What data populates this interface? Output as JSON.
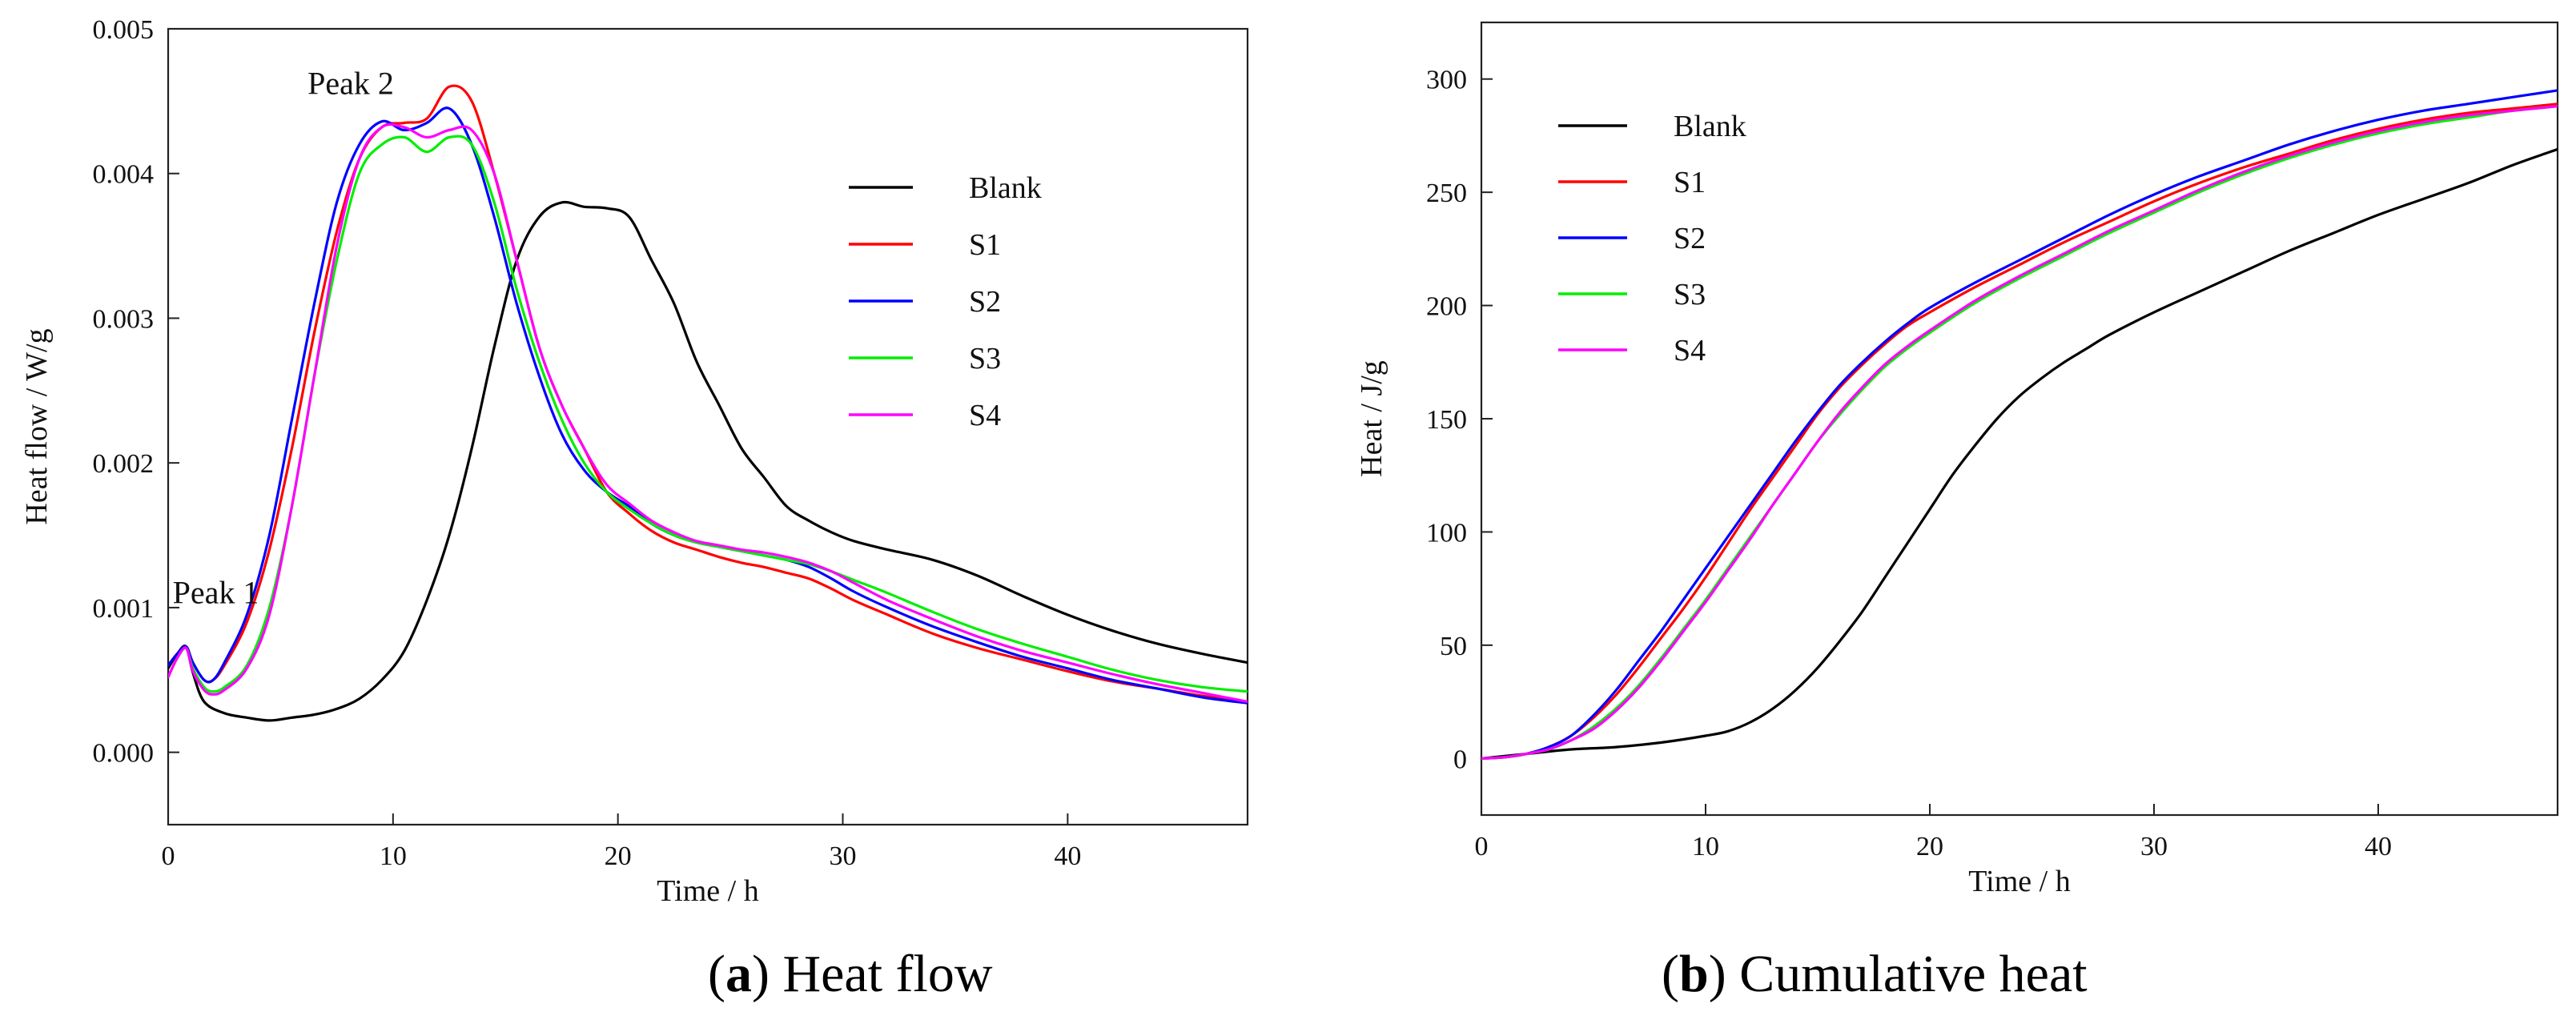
{
  "chart_data": [
    {
      "id": "a",
      "type": "line",
      "caption_letter": "a",
      "caption_text": " Heat flow",
      "title": "",
      "xlabel": "Time / h",
      "ylabel": "Heat flow / W/g",
      "xlim": [
        0,
        48
      ],
      "ylim": [
        -0.0005,
        0.005
      ],
      "xticks": [
        0,
        10,
        20,
        30,
        40
      ],
      "xtick_labels": [
        "0",
        "10",
        "20",
        "30",
        "40"
      ],
      "yticks": [
        0,
        0.001,
        0.002,
        0.003,
        0.004,
        0.005
      ],
      "ytick_labels": [
        "0.000",
        "0.001",
        "0.002",
        "0.003",
        "0.004",
        "0.005"
      ],
      "grid": false,
      "legend_position": "center-right",
      "annotations": [
        {
          "text": "Peak 1",
          "x": 0.2,
          "y": 0.00103
        },
        {
          "text": "Peak 2",
          "x": 6.2,
          "y": 0.00455
        }
      ],
      "series": [
        {
          "name": "Blank",
          "color": "#000000",
          "x": [
            0,
            0.4,
            0.8,
            1.1,
            1.6,
            2.5,
            3.5,
            4.5,
            5.5,
            6.5,
            7.5,
            8.5,
            9.5,
            10.5,
            11.5,
            12.5,
            13.5,
            14.5,
            15.5,
            16.5,
            17.5,
            18.5,
            19.5,
            20.5,
            21.5,
            22.5,
            23.5,
            24.5,
            25.5,
            26.5,
            27.5,
            28.5,
            29.5,
            30.5,
            32,
            34,
            36,
            38,
            40,
            42,
            44,
            46,
            48
          ],
          "y": [
            0.00058,
            0.00068,
            0.00073,
            0.00055,
            0.00035,
            0.00027,
            0.00024,
            0.00022,
            0.00024,
            0.00026,
            0.0003,
            0.00037,
            0.0005,
            0.0007,
            0.00105,
            0.0015,
            0.0021,
            0.0028,
            0.0034,
            0.0037,
            0.0038,
            0.00377,
            0.00376,
            0.0037,
            0.0034,
            0.0031,
            0.0027,
            0.0024,
            0.0021,
            0.0019,
            0.0017,
            0.0016,
            0.00152,
            0.00146,
            0.0014,
            0.00133,
            0.00122,
            0.00108,
            0.00095,
            0.00084,
            0.00075,
            0.00068,
            0.00062
          ]
        },
        {
          "name": "S1",
          "color": "#ff0000",
          "x": [
            0,
            0.4,
            0.8,
            1.1,
            1.6,
            2,
            2.5,
            3.5,
            4.5,
            5.5,
            6.5,
            7.5,
            8.5,
            9.5,
            10.5,
            11.5,
            12.5,
            13.5,
            14.5,
            15.5,
            16.5,
            17.5,
            18.5,
            19.5,
            20.5,
            21.5,
            22.5,
            23.5,
            24.5,
            25.5,
            26.5,
            27.5,
            28.5,
            29.5,
            30.5,
            32,
            34,
            36,
            38,
            40,
            42,
            44,
            46,
            48
          ],
          "y": [
            0.0006,
            0.00068,
            0.00073,
            0.00062,
            0.0005,
            0.0005,
            0.0006,
            0.0009,
            0.0014,
            0.0021,
            0.0029,
            0.0036,
            0.0041,
            0.00432,
            0.00435,
            0.00438,
            0.0046,
            0.0045,
            0.004,
            0.0034,
            0.0028,
            0.0024,
            0.0021,
            0.0018,
            0.00165,
            0.00153,
            0.00145,
            0.0014,
            0.00135,
            0.00131,
            0.00128,
            0.00124,
            0.0012,
            0.00113,
            0.00105,
            0.00095,
            0.00082,
            0.00072,
            0.00064,
            0.00056,
            0.00049,
            0.00044,
            0.00039,
            0.00035
          ]
        },
        {
          "name": "S2",
          "color": "#0000ff",
          "x": [
            0,
            0.4,
            0.8,
            1.1,
            1.6,
            2,
            2.5,
            3.5,
            4.5,
            5.5,
            6.5,
            7.5,
            8.5,
            9.5,
            10.5,
            11.5,
            12.5,
            13.5,
            14.5,
            15.5,
            16.5,
            17.5,
            18.5,
            19.5,
            20.5,
            21.5,
            22.5,
            23.5,
            24.5,
            25.5,
            26.5,
            27.5,
            28.5,
            29.5,
            30.5,
            32,
            34,
            36,
            38,
            40,
            42,
            44,
            46,
            48
          ],
          "y": [
            0.0006,
            0.00068,
            0.00073,
            0.00062,
            0.0005,
            0.0005,
            0.00062,
            0.00095,
            0.0015,
            0.0023,
            0.0031,
            0.0038,
            0.0042,
            0.00436,
            0.0043,
            0.00435,
            0.00445,
            0.0042,
            0.0037,
            0.0031,
            0.0026,
            0.0022,
            0.00195,
            0.0018,
            0.0017,
            0.00158,
            0.0015,
            0.00145,
            0.00142,
            0.00139,
            0.00136,
            0.00133,
            0.00128,
            0.0012,
            0.00111,
            0.001,
            0.00087,
            0.00076,
            0.00066,
            0.00058,
            0.0005,
            0.00044,
            0.00038,
            0.00034
          ]
        },
        {
          "name": "S3",
          "color": "#00ee00",
          "x": [
            0,
            0.4,
            0.8,
            1.1,
            1.6,
            2,
            2.5,
            3.5,
            4.5,
            5.5,
            6.5,
            7.5,
            8.5,
            9.5,
            10.5,
            11.5,
            12.5,
            13.5,
            14.5,
            15.5,
            16.5,
            17.5,
            18.5,
            19.5,
            20.5,
            21.5,
            22.5,
            23.5,
            24.5,
            25.5,
            26.5,
            27.5,
            28.5,
            29.5,
            30.5,
            32,
            34,
            36,
            38,
            40,
            42,
            44,
            46,
            48
          ],
          "y": [
            0.00052,
            0.00065,
            0.00072,
            0.00058,
            0.00045,
            0.00042,
            0.00045,
            0.0006,
            0.001,
            0.0017,
            0.0026,
            0.0034,
            0.004,
            0.0042,
            0.00425,
            0.00415,
            0.00425,
            0.0042,
            0.0038,
            0.0032,
            0.0027,
            0.0023,
            0.002,
            0.0018,
            0.00168,
            0.00158,
            0.0015,
            0.00145,
            0.00142,
            0.00139,
            0.00136,
            0.00133,
            0.0013,
            0.00125,
            0.00119,
            0.0011,
            0.00097,
            0.00085,
            0.00075,
            0.00066,
            0.00057,
            0.0005,
            0.00045,
            0.00042
          ]
        },
        {
          "name": "S4",
          "color": "#ff00ff",
          "x": [
            0,
            0.4,
            0.8,
            1.1,
            1.6,
            2,
            2.5,
            3.5,
            4.5,
            5.5,
            6.5,
            7.5,
            8.5,
            9.5,
            10.5,
            11.5,
            12.5,
            13.5,
            14.5,
            15.5,
            16.5,
            17.5,
            18.5,
            19.5,
            20.5,
            21.5,
            22.5,
            23.5,
            24.5,
            25.5,
            26.5,
            27.5,
            28.5,
            29.5,
            30.5,
            32,
            34,
            36,
            38,
            40,
            42,
            44,
            46,
            48
          ],
          "y": [
            0.00052,
            0.00065,
            0.00072,
            0.00056,
            0.00043,
            0.0004,
            0.00043,
            0.00058,
            0.00095,
            0.0017,
            0.0026,
            0.0035,
            0.0041,
            0.00432,
            0.00432,
            0.00425,
            0.0043,
            0.0043,
            0.004,
            0.0034,
            0.0028,
            0.0024,
            0.0021,
            0.00185,
            0.00172,
            0.0016,
            0.00152,
            0.00146,
            0.00143,
            0.0014,
            0.00138,
            0.00135,
            0.00131,
            0.00125,
            0.00117,
            0.00105,
            0.00092,
            0.0008,
            0.0007,
            0.00062,
            0.00054,
            0.00047,
            0.00041,
            0.00035
          ]
        }
      ]
    },
    {
      "id": "b",
      "type": "line",
      "caption_letter": "b",
      "caption_text": " Cumulative heat",
      "title": "",
      "xlabel": "Time / h",
      "ylabel": "Heat / J/g",
      "xlim": [
        0,
        48
      ],
      "ylim": [
        -25,
        325
      ],
      "xticks": [
        0,
        10,
        20,
        30,
        40
      ],
      "xtick_labels": [
        "0",
        "10",
        "20",
        "30",
        "40"
      ],
      "yticks": [
        0,
        50,
        100,
        150,
        200,
        250,
        300
      ],
      "ytick_labels": [
        "0",
        "50",
        "100",
        "150",
        "200",
        "250",
        "300"
      ],
      "grid": false,
      "legend_position": "top-left",
      "annotations": [],
      "series": [
        {
          "name": "Blank",
          "color": "#000000",
          "x": [
            0,
            2,
            4,
            6,
            8,
            10,
            11,
            12,
            13,
            14,
            15,
            16,
            17,
            18,
            19,
            20,
            21,
            22,
            23,
            24,
            25,
            26,
            27,
            28,
            30,
            32,
            34,
            36,
            38,
            40,
            42,
            44,
            46,
            48
          ],
          "y": [
            0,
            2,
            4,
            5,
            7,
            10,
            12,
            16,
            22,
            30,
            40,
            52,
            65,
            80,
            95,
            110,
            125,
            138,
            150,
            160,
            168,
            175,
            181,
            187,
            197,
            206,
            215,
            224,
            232,
            240,
            247,
            254,
            262,
            269
          ]
        },
        {
          "name": "S1",
          "color": "#ff0000",
          "x": [
            0,
            1,
            2,
            3,
            4,
            5,
            6,
            7,
            8,
            9,
            10,
            11,
            12,
            13,
            14,
            15,
            16,
            17,
            18,
            19,
            20,
            22,
            24,
            26,
            28,
            30,
            32,
            34,
            36,
            38,
            40,
            42,
            44,
            46,
            48
          ],
          "y": [
            0,
            0.5,
            2,
            5,
            10,
            18,
            28,
            40,
            53,
            66,
            80,
            95,
            110,
            124,
            138,
            152,
            164,
            174,
            183,
            191,
            197,
            208,
            218,
            228,
            237,
            246,
            254,
            261,
            267,
            273,
            278,
            282,
            285,
            287,
            289
          ]
        },
        {
          "name": "S2",
          "color": "#0000ff",
          "x": [
            0,
            1,
            2,
            3,
            4,
            5,
            6,
            7,
            8,
            9,
            10,
            11,
            12,
            13,
            14,
            15,
            16,
            17,
            18,
            19,
            20,
            22,
            24,
            26,
            28,
            30,
            32,
            34,
            36,
            38,
            40,
            42,
            44,
            46,
            48
          ],
          "y": [
            0,
            0.5,
            2,
            5,
            10,
            19,
            30,
            43,
            56,
            70,
            84,
            98,
            112,
            126,
            140,
            153,
            165,
            175,
            184,
            192,
            199,
            210,
            220,
            230,
            240,
            249,
            257,
            264,
            271,
            277,
            282,
            286,
            289,
            292,
            295
          ]
        },
        {
          "name": "S3",
          "color": "#00ee00",
          "x": [
            0,
            1,
            2,
            3,
            4,
            5,
            6,
            7,
            8,
            9,
            10,
            11,
            12,
            13,
            14,
            15,
            16,
            17,
            18,
            19,
            20,
            22,
            24,
            26,
            28,
            30,
            32,
            34,
            36,
            38,
            40,
            42,
            44,
            46,
            48
          ],
          "y": [
            0,
            0.5,
            2,
            4,
            8,
            14,
            22,
            32,
            44,
            57,
            70,
            84,
            98,
            112,
            126,
            140,
            152,
            163,
            173,
            181,
            188,
            201,
            212,
            222,
            232,
            241,
            250,
            258,
            265,
            271,
            276,
            280,
            283,
            286,
            288
          ]
        },
        {
          "name": "S4",
          "color": "#ff00ff",
          "x": [
            0,
            1,
            2,
            3,
            4,
            5,
            6,
            7,
            8,
            9,
            10,
            11,
            12,
            13,
            14,
            15,
            16,
            17,
            18,
            19,
            20,
            22,
            24,
            26,
            28,
            30,
            32,
            34,
            36,
            38,
            40,
            42,
            44,
            46,
            48
          ],
          "y": [
            0,
            0.5,
            2,
            4,
            8,
            13,
            21,
            31,
            43,
            56,
            69,
            83,
            97,
            112,
            126,
            140,
            153,
            164,
            174,
            182,
            189,
            202,
            213,
            223,
            233,
            242,
            251,
            259,
            266,
            272,
            277,
            281,
            284,
            286,
            288
          ]
        }
      ]
    }
  ]
}
